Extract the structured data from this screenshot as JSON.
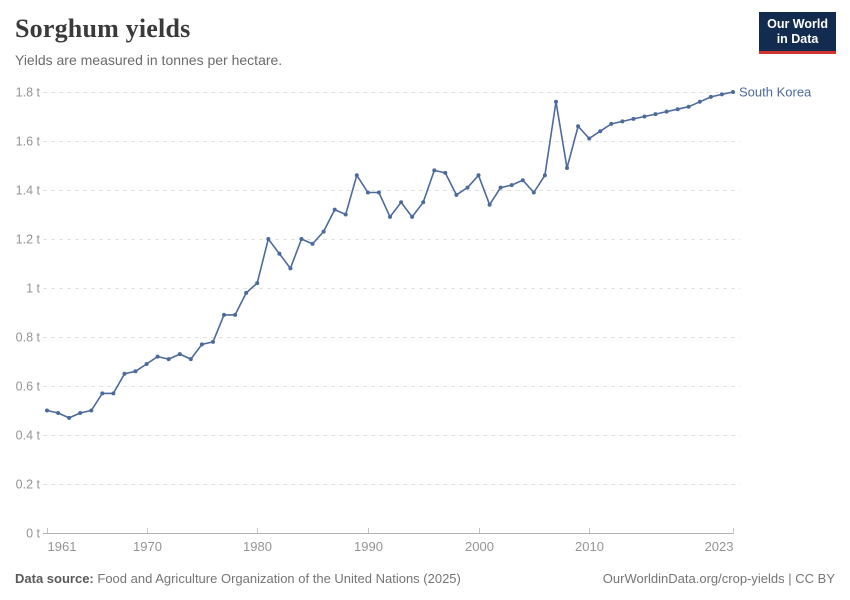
{
  "header": {
    "title": "Sorghum yields",
    "subtitle": "Yields are measured in tonnes per hectare."
  },
  "logo": {
    "line1": "Our World",
    "line2": "in Data",
    "bg_color": "#122B4F",
    "accent_color": "#D0342C"
  },
  "chart_data": {
    "type": "line",
    "title": "Sorghum yields",
    "ylabel": "tonnes per hectare",
    "unit": "t",
    "entity_label": "South Korea",
    "line_color": "#4C6A9C",
    "axis_text_color": "#949494",
    "grid": true,
    "legend_position": "end-of-line-label",
    "xlim": [
      1961,
      2023
    ],
    "ylim": [
      0,
      1.8
    ],
    "y_ticks": [
      0,
      0.2,
      0.4,
      0.6,
      0.8,
      1.0,
      1.2,
      1.4,
      1.6,
      1.8
    ],
    "y_tick_labels": [
      "0 t",
      "0.2 t",
      "0.4 t",
      "0.6 t",
      "0.8 t",
      "1 t",
      "1.2 t",
      "1.4 t",
      "1.6 t",
      "1.8 t"
    ],
    "x_tick_years": [
      1961,
      1970,
      1980,
      1990,
      2000,
      2010,
      2023
    ],
    "x_tick_labels": [
      "1961",
      "1970",
      "1980",
      "1990",
      "2000",
      "2010",
      "2023"
    ],
    "years": [
      1961,
      1962,
      1963,
      1964,
      1965,
      1966,
      1967,
      1968,
      1969,
      1970,
      1971,
      1972,
      1973,
      1974,
      1975,
      1976,
      1977,
      1978,
      1979,
      1980,
      1981,
      1982,
      1983,
      1984,
      1985,
      1986,
      1987,
      1988,
      1989,
      1990,
      1991,
      1992,
      1993,
      1994,
      1995,
      1996,
      1997,
      1998,
      1999,
      2000,
      2001,
      2002,
      2003,
      2004,
      2005,
      2006,
      2007,
      2008,
      2009,
      2010,
      2011,
      2012,
      2013,
      2014,
      2015,
      2016,
      2017,
      2018,
      2019,
      2020,
      2021,
      2022,
      2023
    ],
    "values": [
      0.5,
      0.49,
      0.47,
      0.49,
      0.5,
      0.57,
      0.57,
      0.65,
      0.66,
      0.69,
      0.72,
      0.71,
      0.73,
      0.71,
      0.77,
      0.78,
      0.89,
      0.89,
      0.98,
      1.02,
      1.2,
      1.14,
      1.08,
      1.2,
      1.18,
      1.23,
      1.32,
      1.3,
      1.46,
      1.39,
      1.39,
      1.29,
      1.35,
      1.29,
      1.35,
      1.48,
      1.47,
      1.38,
      1.41,
      1.46,
      1.34,
      1.41,
      1.42,
      1.44,
      1.39,
      1.46,
      1.76,
      1.49,
      1.66,
      1.61,
      1.64,
      1.67,
      1.68,
      1.69,
      1.7,
      1.71,
      1.72,
      1.73,
      1.74,
      1.76,
      1.78,
      1.79,
      1.8
    ]
  },
  "footer": {
    "source_label": "Data source:",
    "source_text": "Food and Agriculture Organization of the United Nations (2025)",
    "link_text": "OurWorldinData.org/crop-yields",
    "separator": "|",
    "license_text": "CC BY"
  }
}
